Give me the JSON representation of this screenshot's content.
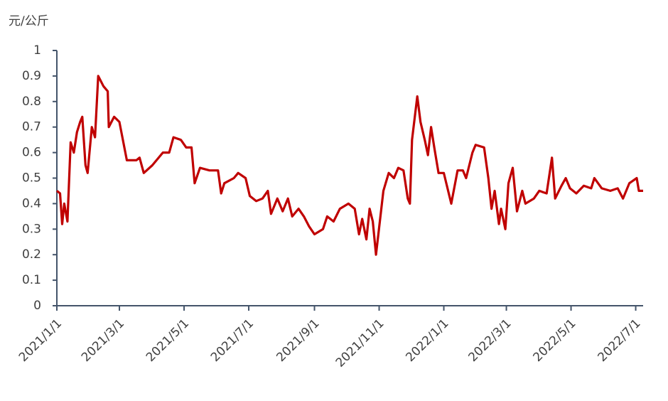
{
  "chart_data": {
    "type": "line",
    "y_label": "元/公斤",
    "x": [
      "2021/1/1",
      "2021/1/4",
      "2021/1/6",
      "2021/1/8",
      "2021/1/11",
      "2021/1/14",
      "2021/1/17",
      "2021/1/20",
      "2021/1/23",
      "2021/1/25",
      "2021/1/28",
      "2021/1/30",
      "2021/2/3",
      "2021/2/6",
      "2021/2/9",
      "2021/2/14",
      "2021/2/18",
      "2021/2/19",
      "2021/2/24",
      "2021/3/1",
      "2021/3/8",
      "2021/3/17",
      "2021/3/20",
      "2021/3/24",
      "2021/4/1",
      "2021/4/11",
      "2021/4/17",
      "2021/4/21",
      "2021/4/28",
      "2021/5/3",
      "2021/5/8",
      "2021/5/11",
      "2021/5/16",
      "2021/5/25",
      "2021/6/2",
      "2021/6/5",
      "2021/6/8",
      "2021/6/17",
      "2021/6/21",
      "2021/6/28",
      "2021/7/2",
      "2021/7/8",
      "2021/7/14",
      "2021/7/19",
      "2021/7/22",
      "2021/7/28",
      "2021/8/2",
      "2021/8/7",
      "2021/8/11",
      "2021/8/17",
      "2021/8/22",
      "2021/8/27",
      "2021/9/1",
      "2021/9/9",
      "2021/9/13",
      "2021/9/19",
      "2021/9/25",
      "2021/10/3",
      "2021/10/9",
      "2021/10/13",
      "2021/10/16",
      "2021/10/20",
      "2021/10/23",
      "2021/10/26",
      "2021/10/29",
      "2021/11/5",
      "2021/11/10",
      "2021/11/15",
      "2021/11/19",
      "2021/11/24",
      "2021/11/28",
      "2021/11/30",
      "2021/12/2",
      "2021/12/7",
      "2021/12/10",
      "2021/12/14",
      "2021/12/17",
      "2021/12/20",
      "2021/12/23",
      "2021/12/27",
      "2022/1/1",
      "2022/1/8",
      "2022/1/14",
      "2022/1/19",
      "2022/1/22",
      "2022/1/28",
      "2022/1/31",
      "2022/2/8",
      "2022/2/12",
      "2022/2/15",
      "2022/2/18",
      "2022/2/22",
      "2022/2/24",
      "2022/2/28",
      "2022/3/3",
      "2022/3/7",
      "2022/3/11",
      "2022/3/16",
      "2022/3/19",
      "2022/3/27",
      "2022/4/1",
      "2022/4/8",
      "2022/4/13",
      "2022/4/16",
      "2022/4/22",
      "2022/4/26",
      "2022/4/30",
      "2022/5/6",
      "2022/5/13",
      "2022/5/20",
      "2022/5/23",
      "2022/5/30",
      "2022/6/7",
      "2022/6/14",
      "2022/6/19",
      "2022/6/25",
      "2022/7/2",
      "2022/7/4",
      "2022/7/8"
    ],
    "series": [
      {
        "color": "#c00000",
        "values": [
          0.45,
          0.44,
          0.32,
          0.4,
          0.33,
          0.64,
          0.6,
          0.68,
          0.72,
          0.74,
          0.55,
          0.52,
          0.7,
          0.66,
          0.9,
          0.86,
          0.84,
          0.7,
          0.74,
          0.72,
          0.57,
          0.57,
          0.58,
          0.52,
          0.55,
          0.6,
          0.6,
          0.66,
          0.65,
          0.62,
          0.62,
          0.48,
          0.54,
          0.53,
          0.53,
          0.44,
          0.48,
          0.5,
          0.52,
          0.5,
          0.43,
          0.41,
          0.42,
          0.45,
          0.36,
          0.42,
          0.37,
          0.42,
          0.35,
          0.38,
          0.35,
          0.31,
          0.28,
          0.3,
          0.35,
          0.33,
          0.38,
          0.4,
          0.38,
          0.28,
          0.34,
          0.26,
          0.38,
          0.33,
          0.2,
          0.45,
          0.52,
          0.5,
          0.54,
          0.53,
          0.42,
          0.4,
          0.65,
          0.82,
          0.72,
          0.65,
          0.59,
          0.7,
          0.62,
          0.52,
          0.52,
          0.4,
          0.53,
          0.53,
          0.5,
          0.6,
          0.63,
          0.62,
          0.5,
          0.38,
          0.45,
          0.32,
          0.38,
          0.3,
          0.48,
          0.54,
          0.37,
          0.45,
          0.4,
          0.42,
          0.45,
          0.44,
          0.58,
          0.42,
          0.47,
          0.5,
          0.46,
          0.44,
          0.47,
          0.46,
          0.5,
          0.46,
          0.45,
          0.46,
          0.42,
          0.48,
          0.5,
          0.45,
          0.45
        ]
      }
    ],
    "xlim": [
      "2021/1/1",
      "2022/7/8"
    ],
    "xticks": [
      "2021/1/1",
      "2021/3/1",
      "2021/5/1",
      "2021/7/1",
      "2021/9/1",
      "2021/11/1",
      "2022/1/1",
      "2022/3/1",
      "2022/5/1",
      "2022/7/1"
    ],
    "ylim": [
      0,
      1
    ],
    "yticks": [
      0,
      0.1,
      0.2,
      0.3,
      0.4,
      0.5,
      0.6,
      0.7,
      0.8,
      0.9,
      1
    ]
  }
}
